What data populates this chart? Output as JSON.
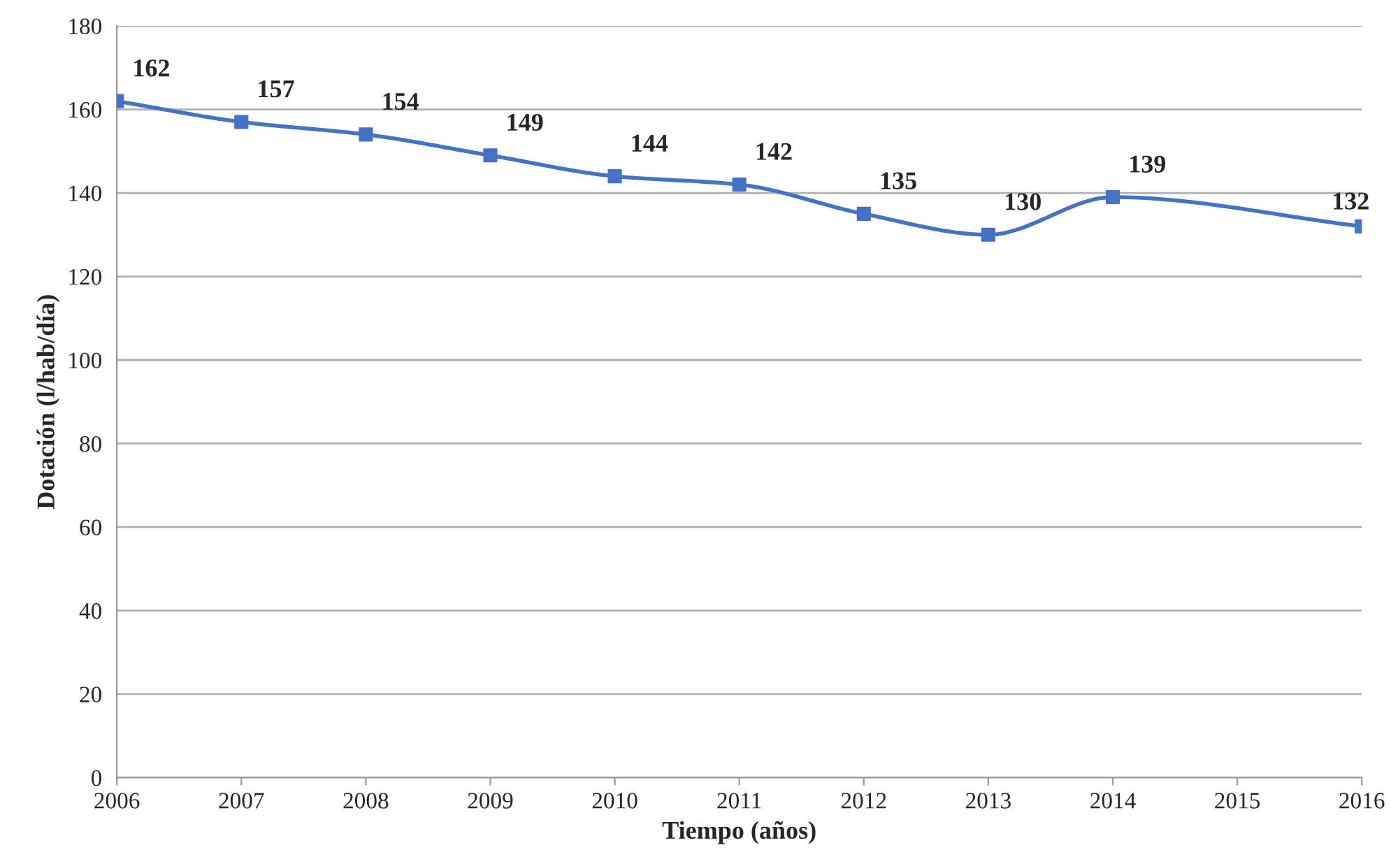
{
  "chart_data": {
    "type": "line",
    "xlabel": "Tiempo (años)",
    "ylabel": "Dotación (l/hab/día)",
    "x": [
      2006,
      2007,
      2008,
      2009,
      2010,
      2011,
      2012,
      2013,
      2014,
      2016
    ],
    "series": [
      {
        "color": "#4472c4",
        "values": [
          162,
          157,
          154,
          149,
          144,
          142,
          135,
          130,
          139,
          132
        ]
      }
    ],
    "xlim": [
      2006,
      2016
    ],
    "xticks": [
      2006,
      2007,
      2008,
      2009,
      2010,
      2011,
      2012,
      2013,
      2014,
      2015,
      2016
    ],
    "ylim": [
      0,
      180
    ],
    "yticks": [
      0,
      20,
      40,
      60,
      80,
      100,
      120,
      140,
      160,
      180
    ],
    "grid": "y",
    "marker": "square",
    "line_style": "solid",
    "data_labels": true
  }
}
